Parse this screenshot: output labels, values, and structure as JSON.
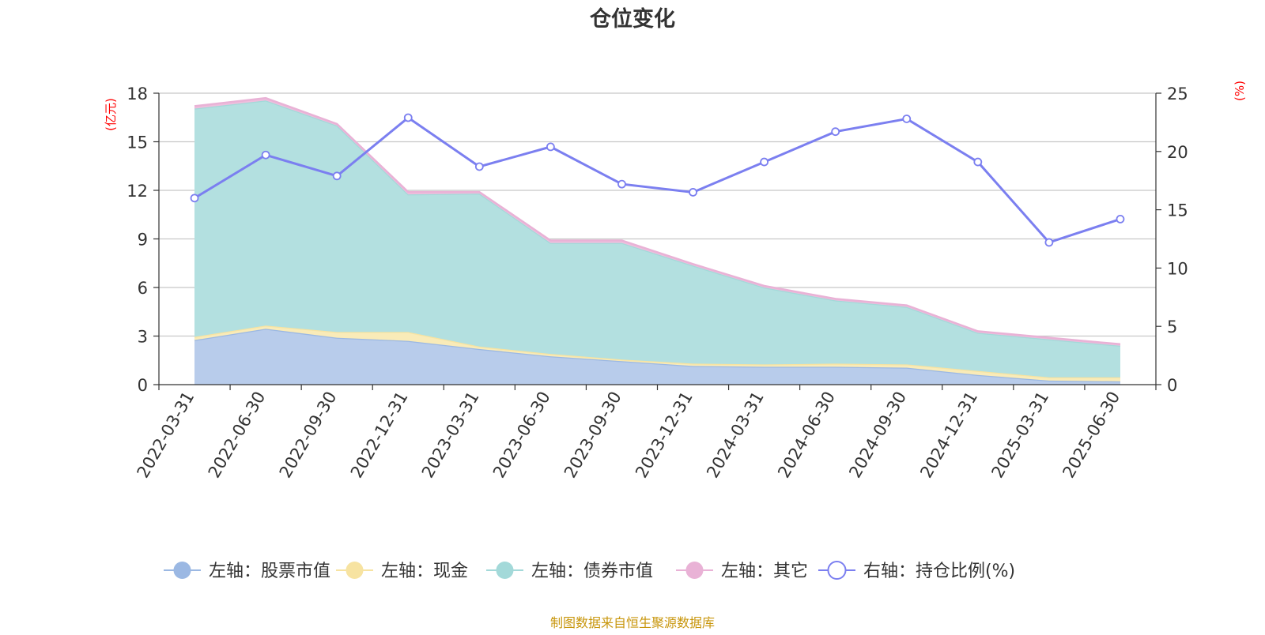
{
  "chart_data": {
    "type": "area",
    "title": "仓位变化",
    "left_axis": {
      "unit_label": "(亿元)",
      "ticks": [
        "0",
        "3",
        "6",
        "9",
        "12",
        "15",
        "18"
      ],
      "range": [
        0,
        18
      ]
    },
    "right_axis": {
      "unit_label": "(%)",
      "ticks": [
        "0",
        "5",
        "10",
        "15",
        "20",
        "25"
      ],
      "range": [
        0,
        25
      ]
    },
    "grid": true,
    "categories": [
      "2022-03-31",
      "2022-06-30",
      "2022-09-30",
      "2022-12-31",
      "2023-03-31",
      "2023-06-30",
      "2023-09-30",
      "2023-12-31",
      "2024-03-31",
      "2024-06-30",
      "2024-09-30",
      "2024-12-31",
      "2025-03-31",
      "2025-06-30"
    ],
    "stacked_series": [
      {
        "name": "左轴：股票市值",
        "axis": "left",
        "color": "#9bb8e3",
        "fill": "#b8cceb",
        "values": [
          2.75,
          3.45,
          2.9,
          2.7,
          2.2,
          1.75,
          1.45,
          1.15,
          1.1,
          1.1,
          1.05,
          0.6,
          0.25,
          0.2
        ]
      },
      {
        "name": "左轴：现金",
        "axis": "left",
        "color": "#f7e3a1",
        "fill": "#f9ebb8",
        "values": [
          0.2,
          0.2,
          0.35,
          0.55,
          0.15,
          0.15,
          0.1,
          0.15,
          0.15,
          0.2,
          0.2,
          0.25,
          0.2,
          0.25
        ]
      },
      {
        "name": "左轴：债券市值",
        "axis": "left",
        "color": "#a3d9d9",
        "fill": "#b3e0e0",
        "values": [
          14.1,
          13.9,
          12.75,
          8.5,
          9.45,
          6.85,
          7.2,
          6.05,
          4.75,
          3.9,
          3.55,
          2.35,
          2.35,
          1.95
        ]
      },
      {
        "name": "左轴：其它",
        "axis": "left",
        "color": "#e9b2d6",
        "fill": "#eebfdd",
        "values": [
          0.15,
          0.15,
          0.1,
          0.15,
          0.1,
          0.15,
          0.15,
          0.1,
          0.1,
          0.1,
          0.1,
          0.1,
          0.1,
          0.1
        ]
      }
    ],
    "line_series": {
      "name": "右轴：持仓比例(%)",
      "axis": "right",
      "color": "#7b7ff0",
      "values": [
        16.0,
        19.7,
        17.9,
        22.9,
        18.7,
        20.4,
        17.2,
        16.5,
        19.1,
        21.7,
        22.8,
        19.1,
        12.2,
        14.2
      ]
    },
    "legend_position": "bottom"
  },
  "footer": {
    "source": "制图数据来自恒生聚源数据库"
  },
  "colors": {
    "title": "#333333",
    "axis_unit": "#ff0000",
    "axis_line": "#333333",
    "grid": "#c8c8c8",
    "footer": "#c8960c"
  }
}
